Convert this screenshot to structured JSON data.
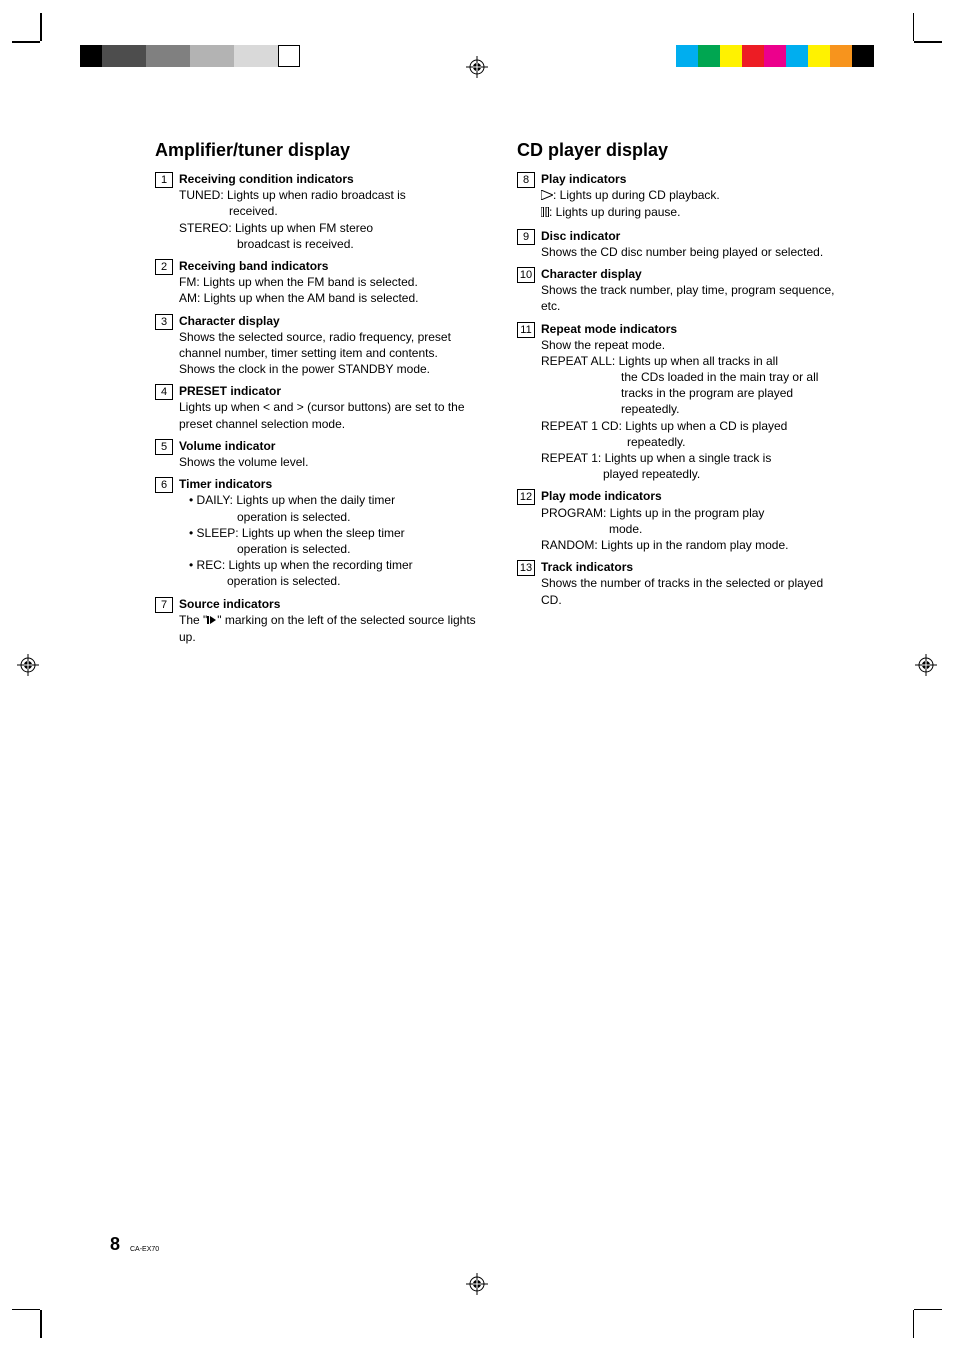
{
  "colorbars_left": [
    "#000000",
    "#4d4d4d",
    "#4d4d4d",
    "#808080",
    "#808080",
    "#b3b3b3",
    "#b3b3b3",
    "#d9d9d9",
    "#d9d9d9",
    "outline"
  ],
  "colorbars_right": [
    "#00aeef",
    "#00a651",
    "#fff200",
    "#ed1c24",
    "#ec008c",
    "#00aeef",
    "#fff200",
    "#f7941d",
    "#000000"
  ],
  "left": {
    "heading": "Amplifier/tuner display",
    "items": [
      {
        "num": "1",
        "title": "Receiving condition indicators",
        "lines": [
          {
            "t": "TUNED: Lights up when radio broadcast is"
          },
          {
            "t": "received.",
            "cls": "indent2",
            "style": "padding-left:50px"
          },
          {
            "t": "STEREO: Lights up when FM stereo"
          },
          {
            "t": "broadcast is received.",
            "cls": "indent2",
            "style": "padding-left:58px"
          }
        ]
      },
      {
        "num": "2",
        "title": "Receiving band indicators",
        "lines": [
          {
            "t": "FM: Lights up when the FM band is selected."
          },
          {
            "t": "AM: Lights up when the AM band is selected."
          }
        ]
      },
      {
        "num": "3",
        "title": "Character display",
        "lines": [
          {
            "t": "Shows the selected source, radio frequency, preset channel number, timer setting item and contents."
          },
          {
            "t": "Shows the clock in the power STANDBY mode."
          }
        ]
      },
      {
        "num": "4",
        "title": "PRESET indicator",
        "lines": [
          {
            "t": "Lights up when < and > (cursor buttons) are set to the preset channel selection mode."
          }
        ]
      },
      {
        "num": "5",
        "title": "Volume indicator",
        "lines": [
          {
            "t": "Shows the volume level."
          }
        ]
      },
      {
        "num": "6",
        "title": "Timer indicators",
        "lines": [
          {
            "t": "• DAILY: Lights up when the daily timer",
            "cls": "indent-bullet"
          },
          {
            "t": "operation is selected.",
            "style": "padding-left:58px"
          },
          {
            "t": "• SLEEP: Lights up when the sleep timer",
            "cls": "indent-bullet"
          },
          {
            "t": "operation is selected.",
            "style": "padding-left:58px"
          },
          {
            "t": "• REC: Lights up when the recording timer",
            "cls": "indent-bullet"
          },
          {
            "t": "operation is selected.",
            "style": "padding-left:48px"
          }
        ]
      },
      {
        "num": "7",
        "title": "Source indicators",
        "lines": [
          {
            "t": "__SOURCE_ICON__"
          }
        ]
      }
    ]
  },
  "right": {
    "heading": "CD player display",
    "items": [
      {
        "num": "8",
        "title": "Play indicators",
        "lines": [
          {
            "t": "__PLAY_TRIANGLE__"
          },
          {
            "t": "__PAUSE_BARS__"
          }
        ]
      },
      {
        "num": "9",
        "title": "Disc indicator",
        "lines": [
          {
            "t": "Shows the CD disc number being played or selected."
          }
        ]
      },
      {
        "num": "10",
        "title": "Character display",
        "lines": [
          {
            "t": "Shows the track number, play time, program sequence, etc."
          }
        ]
      },
      {
        "num": "11",
        "title": "Repeat mode indicators",
        "lines": [
          {
            "t": "Show the repeat mode."
          },
          {
            "t": "REPEAT ALL: Lights up when all tracks in all"
          },
          {
            "t": "the CDs loaded in the main tray or all tracks in the program are played repeatedly.",
            "style": "padding-left:80px"
          },
          {
            "t": "REPEAT 1 CD: Lights up when a CD is played"
          },
          {
            "t": "repeatedly.",
            "style": "padding-left:86px"
          },
          {
            "t": "REPEAT 1: Lights up when a single track is"
          },
          {
            "t": "played repeatedly.",
            "style": "padding-left:62px"
          }
        ]
      },
      {
        "num": "12",
        "title": "Play mode indicators",
        "lines": [
          {
            "t": "PROGRAM: Lights up in the program play"
          },
          {
            "t": "mode.",
            "style": "padding-left:68px"
          },
          {
            "t": "RANDOM: Lights up in the random play mode."
          }
        ]
      },
      {
        "num": "13",
        "title": "Track indicators",
        "lines": [
          {
            "t": "Shows the number of tracks in the selected or played CD."
          }
        ]
      }
    ]
  },
  "page_number": "8",
  "footer_label": "CA-EX70"
}
